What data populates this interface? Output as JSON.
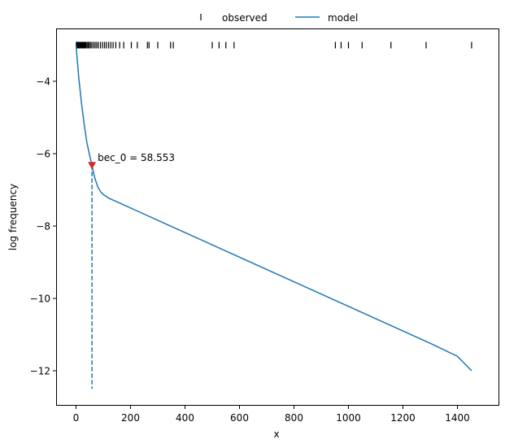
{
  "chart_data": {
    "type": "line",
    "title": "",
    "xlabel": "x",
    "ylabel": "log frequency",
    "xlim": [
      -70,
      1525
    ],
    "ylim": [
      -12.95,
      -2.55
    ],
    "grid": false,
    "legend": {
      "position": "top center (outside axes)",
      "entries": [
        {
          "label": "observed",
          "marker": "vertical tick",
          "color": "#000000"
        },
        {
          "label": "model",
          "marker": "line",
          "color": "#1f77b4"
        }
      ]
    },
    "x_ticks": [
      0,
      200,
      400,
      600,
      800,
      1000,
      1200,
      1400
    ],
    "x_tick_labels": [
      "0",
      "200",
      "400",
      "600",
      "800",
      "1000",
      "1200",
      "1400"
    ],
    "y_ticks": [
      -4,
      -6,
      -8,
      -10,
      -12
    ],
    "y_tick_labels": [
      "−4",
      "−6",
      "−8",
      "−10",
      "−12"
    ],
    "series": [
      {
        "name": "observed",
        "kind": "rug (tick markers at y ≈ -3.0)",
        "color": "#000000",
        "y": -3.0,
        "x": [
          1,
          2,
          3,
          4,
          5,
          6,
          7,
          8,
          9,
          10,
          11,
          12,
          14,
          16,
          18,
          20,
          22,
          24,
          27,
          30,
          33,
          36,
          40,
          44,
          48,
          53,
          58,
          64,
          70,
          76,
          82,
          90,
          98,
          105,
          112,
          120,
          128,
          136,
          146,
          160,
          175,
          203,
          225,
          262,
          268,
          300,
          347,
          357,
          500,
          525,
          550,
          580,
          952,
          973,
          1000,
          1050,
          1156,
          1285,
          1452
        ]
      },
      {
        "name": "model",
        "kind": "line",
        "color": "#1f77b4",
        "x": [
          0,
          10,
          20,
          30,
          40,
          50,
          58.553,
          65,
          70,
          80,
          90,
          100,
          120,
          150,
          200,
          300,
          400,
          500,
          600,
          700,
          800,
          900,
          1000,
          1100,
          1200,
          1300,
          1400,
          1452
        ],
        "y": [
          -3.0,
          -3.9,
          -4.6,
          -5.2,
          -5.7,
          -6.05,
          -6.32,
          -6.55,
          -6.7,
          -6.92,
          -7.05,
          -7.13,
          -7.23,
          -7.33,
          -7.5,
          -7.84,
          -8.18,
          -8.52,
          -8.86,
          -9.2,
          -9.54,
          -9.88,
          -10.22,
          -10.56,
          -10.9,
          -11.24,
          -11.6,
          -12.0
        ]
      },
      {
        "name": "bec_0 marker",
        "kind": "dashed vertical line + triangle marker",
        "color": "#1f77b4",
        "marker_color": "#d62728",
        "x": 58.553,
        "y_top": -6.32,
        "y_bottom": -12.5
      }
    ],
    "annotations": [
      {
        "text": "bec_0 = 58.553",
        "x": 58.553,
        "y": -6.32
      }
    ]
  },
  "legend": {
    "observed_label": "observed",
    "model_label": "model"
  },
  "axes": {
    "xlabel": "x",
    "ylabel": "log frequency"
  },
  "annotation": {
    "text": "bec_0 = 58.553"
  },
  "colors": {
    "model": "#1f77b4",
    "marker": "#d62728",
    "observed": "#000000"
  }
}
